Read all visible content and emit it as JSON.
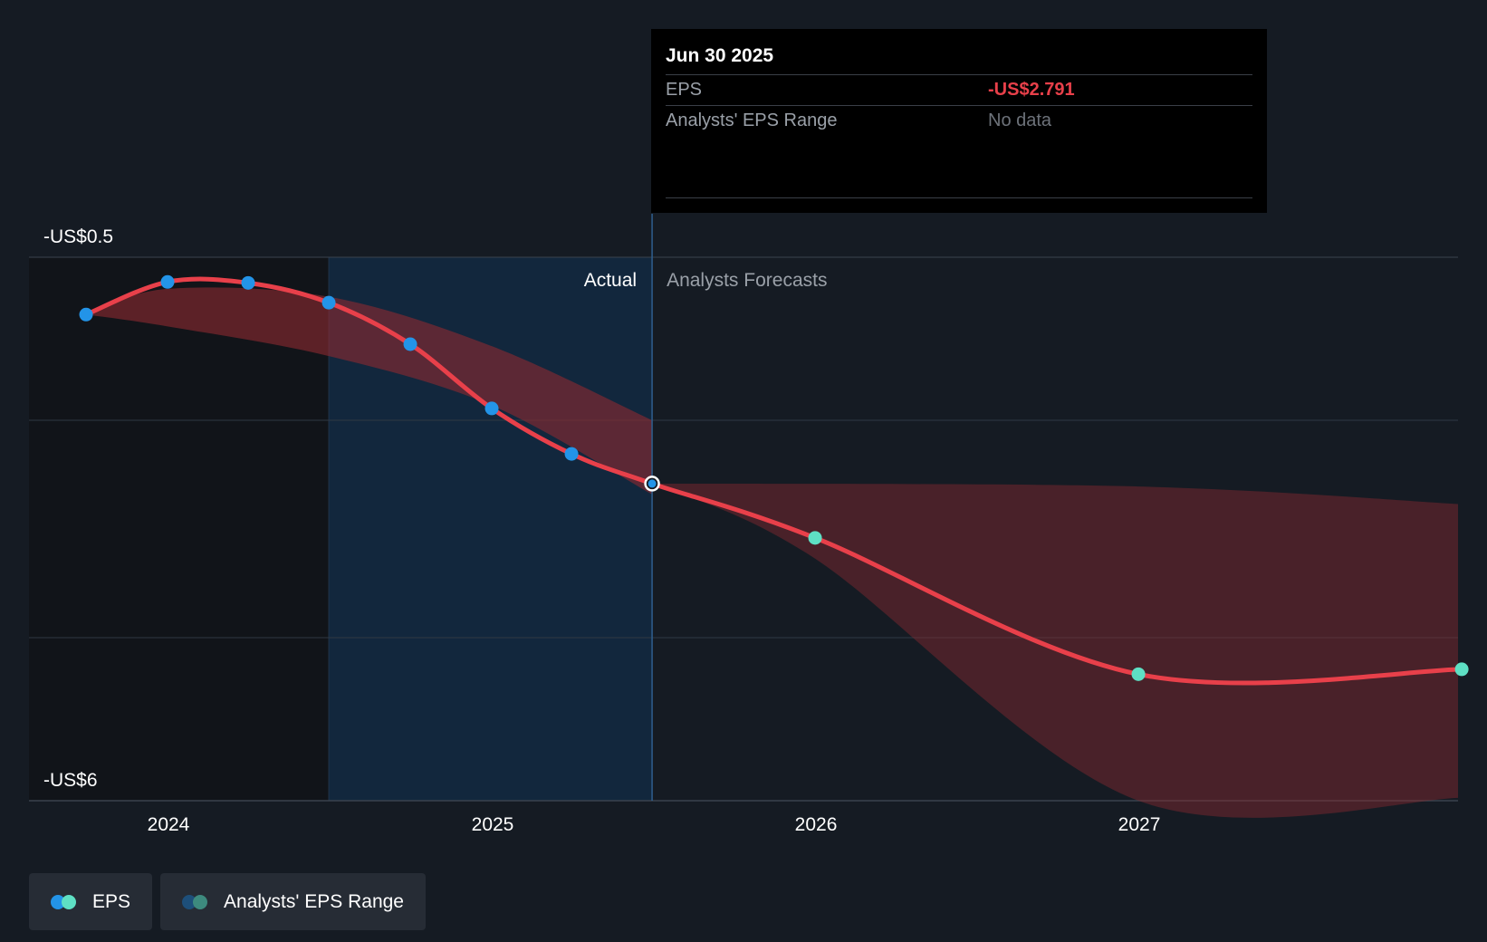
{
  "colors": {
    "background": "#151b23",
    "actual_band": "#12273d",
    "eps_line": "#e8404a",
    "eps_actual_point": "#2394e8",
    "eps_forecast_point": "#5ee0c4",
    "range_fill": "#8a2a30",
    "grid": "#303944",
    "legend_eps_left": "#2394e8",
    "legend_eps_right": "#5ee0c4",
    "legend_range_left": "#1d4f7a",
    "legend_range_right": "#3d8a7e"
  },
  "chart_data": {
    "type": "line",
    "x_axis": {
      "ticks": [
        "2024",
        "2025",
        "2026",
        "2027"
      ]
    },
    "y_axis": {
      "label_top": "-US$0.5",
      "label_bottom": "-US$6",
      "ylim": [
        -6,
        -0.5
      ]
    },
    "grid": true,
    "region_labels": {
      "actual": "Actual",
      "forecast": "Analysts Forecasts"
    },
    "actual_divider_date": "2025-06-30",
    "series": [
      {
        "name": "EPS",
        "points": [
          {
            "x": "2023-09-30",
            "y": -1.08,
            "kind": "actual"
          },
          {
            "x": "2023-12-31",
            "y": -0.75,
            "kind": "actual"
          },
          {
            "x": "2024-03-31",
            "y": -0.76,
            "kind": "actual"
          },
          {
            "x": "2024-06-30",
            "y": -0.96,
            "kind": "actual"
          },
          {
            "x": "2024-09-30",
            "y": -1.38,
            "kind": "actual"
          },
          {
            "x": "2024-12-31",
            "y": -2.03,
            "kind": "actual"
          },
          {
            "x": "2025-03-31",
            "y": -2.49,
            "kind": "actual"
          },
          {
            "x": "2025-06-30",
            "y": -2.791,
            "kind": "actual",
            "highlight": true
          },
          {
            "x": "2025-12-31",
            "y": -3.34,
            "kind": "forecast"
          },
          {
            "x": "2026-12-31",
            "y": -4.72,
            "kind": "forecast"
          },
          {
            "x": "2027-12-31",
            "y": -4.67,
            "kind": "forecast"
          }
        ]
      },
      {
        "name": "Analysts' EPS Range",
        "upper": [
          {
            "x": "2023-09-30",
            "y": -1.08
          },
          {
            "x": "2023-12-31",
            "y": -0.82
          },
          {
            "x": "2024-06-30",
            "y": -0.9
          },
          {
            "x": "2024-12-31",
            "y": -1.4
          },
          {
            "x": "2025-06-30",
            "y": -2.15
          }
        ],
        "lower": [
          {
            "x": "2023-09-30",
            "y": -1.08
          },
          {
            "x": "2023-12-31",
            "y": -1.2
          },
          {
            "x": "2024-06-30",
            "y": -1.5
          },
          {
            "x": "2024-12-31",
            "y": -2.0
          },
          {
            "x": "2025-06-30",
            "y": -2.9
          }
        ],
        "forecast_upper": [
          {
            "x": "2025-06-30",
            "y": -2.791
          },
          {
            "x": "2026-12-31",
            "y": -2.82
          },
          {
            "x": "2027-12-31",
            "y": -3.0
          }
        ],
        "forecast_lower": [
          {
            "x": "2025-06-30",
            "y": -2.791
          },
          {
            "x": "2025-12-31",
            "y": -3.55
          },
          {
            "x": "2026-12-31",
            "y": -6.0
          },
          {
            "x": "2027-12-31",
            "y": -5.97
          }
        ]
      }
    ]
  },
  "tooltip": {
    "date": "Jun 30 2025",
    "rows": [
      {
        "label": "EPS",
        "value": "-US$2.791"
      },
      {
        "label": "Analysts' EPS Range",
        "value": "No data"
      }
    ]
  },
  "legend": {
    "eps_label": "EPS",
    "range_label": "Analysts' EPS Range"
  }
}
